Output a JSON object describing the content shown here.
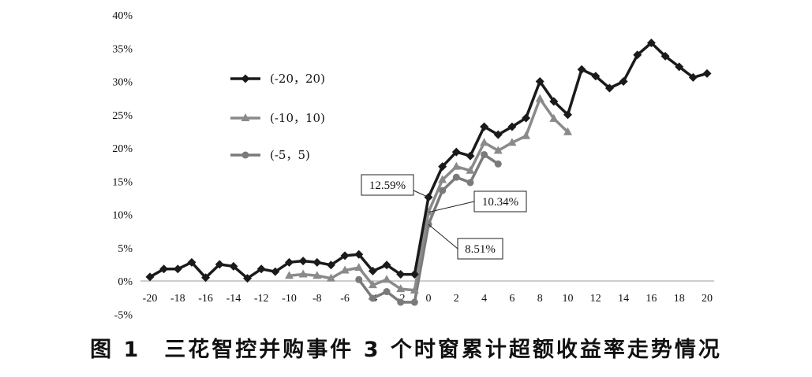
{
  "caption": "图 1　三花智控并购事件 3 个时窗累计超额收益率走势情况",
  "chart_data": {
    "type": "line",
    "title": "",
    "xlabel": "",
    "ylabel": "",
    "xlim": [
      -20,
      20
    ],
    "ylim": [
      -5,
      40
    ],
    "x_ticks": [
      -20,
      -18,
      -16,
      -14,
      -12,
      -10,
      -8,
      -6,
      -4,
      -2,
      0,
      2,
      4,
      6,
      8,
      10,
      12,
      14,
      16,
      18,
      20
    ],
    "y_ticks": [
      -5,
      0,
      5,
      10,
      15,
      20,
      25,
      30,
      35,
      40
    ],
    "y_tick_labels": [
      "-5%",
      "0%",
      "5%",
      "10%",
      "15%",
      "20%",
      "25%",
      "30%",
      "35%",
      "40%"
    ],
    "grid": false,
    "legend_position": "top-left",
    "series": [
      {
        "name": "(-20，20)",
        "color": "#1a1a1a",
        "marker": "diamond",
        "x": [
          -20,
          -19,
          -18,
          -17,
          -16,
          -15,
          -14,
          -13,
          -12,
          -11,
          -10,
          -9,
          -8,
          -7,
          -6,
          -5,
          -4,
          -3,
          -2,
          -1,
          0,
          1,
          2,
          3,
          4,
          5,
          6,
          7,
          8,
          9,
          10,
          11,
          12,
          13,
          14,
          15,
          16,
          17,
          18,
          19,
          20
        ],
        "y": [
          0.6,
          1.8,
          1.8,
          2.8,
          0.5,
          2.5,
          2.2,
          0.4,
          1.8,
          1.4,
          2.8,
          3.0,
          2.8,
          2.4,
          3.8,
          4.0,
          1.5,
          2.4,
          1.0,
          1.0,
          12.59,
          17.2,
          19.4,
          18.8,
          23.2,
          22.0,
          23.2,
          24.5,
          30.0,
          27.0,
          25.0,
          31.8,
          30.8,
          29.0,
          30.0,
          34.0,
          35.8,
          33.8,
          32.2,
          30.6,
          31.2
        ]
      },
      {
        "name": "(-10，10)",
        "color": "#8a8a8a",
        "marker": "triangle",
        "x": [
          -10,
          -9,
          -8,
          -7,
          -6,
          -5,
          -4,
          -3,
          -2,
          -1,
          0,
          1,
          2,
          3,
          4,
          5,
          6,
          7,
          8,
          9,
          10
        ],
        "y": [
          0.8,
          1.0,
          0.8,
          0.4,
          1.6,
          2.0,
          -0.6,
          0.2,
          -1.2,
          -1.4,
          10.34,
          15.2,
          17.2,
          16.6,
          20.8,
          19.6,
          20.8,
          21.8,
          27.4,
          24.4,
          22.4
        ]
      },
      {
        "name": "(-5，5)",
        "color": "#7a7a7a",
        "marker": "circle",
        "x": [
          -5,
          -4,
          -3,
          -2,
          -1,
          0,
          1,
          2,
          3,
          4,
          5
        ],
        "y": [
          0.2,
          -2.6,
          -1.6,
          -3.2,
          -3.2,
          8.51,
          13.6,
          15.6,
          14.8,
          19.0,
          17.6
        ]
      }
    ],
    "annotations": [
      {
        "text": "12.59%",
        "x": 0,
        "y": 12.59
      },
      {
        "text": "10.34%",
        "x": 0,
        "y": 10.34
      },
      {
        "text": "8.51%",
        "x": 0,
        "y": 8.51
      }
    ]
  }
}
